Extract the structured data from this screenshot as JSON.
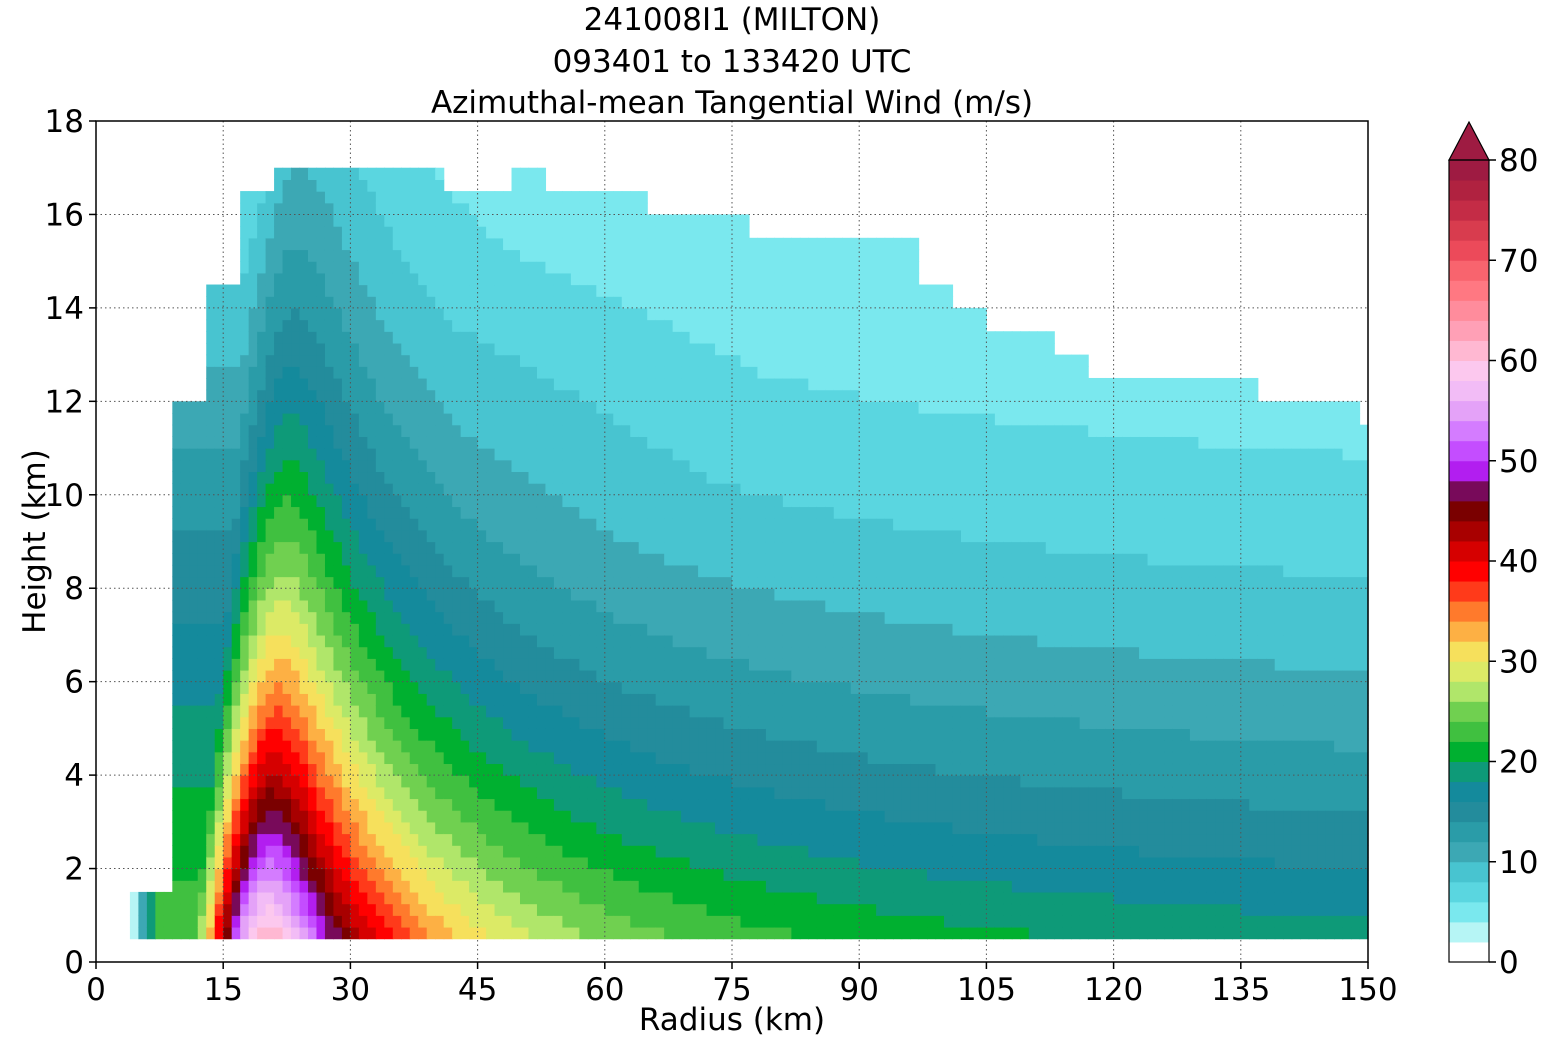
{
  "chart_data": {
    "type": "heatmap",
    "subtype": "filled-contour",
    "title": [
      "241008I1 (MILTON)",
      "093401 to 133420 UTC",
      "Azimuthal-mean Tangential Wind (m/s)"
    ],
    "xlabel": "Radius (km)",
    "ylabel": "Height (km)",
    "xlim": [
      0,
      150
    ],
    "ylim": [
      0,
      18
    ],
    "xticks": [
      0,
      15,
      30,
      45,
      60,
      75,
      90,
      105,
      120,
      135,
      150
    ],
    "yticks": [
      0,
      2,
      4,
      6,
      8,
      10,
      12,
      14,
      16,
      18
    ],
    "grid": true,
    "colorbar": {
      "min": 0,
      "max": 80,
      "step": 2,
      "extend": "max",
      "ticks": [
        0,
        10,
        20,
        30,
        40,
        50,
        60,
        70,
        80
      ],
      "extend_color": "#9e1b42",
      "colors": [
        "#ffffff",
        "#b6f5f5",
        "#7ae8ee",
        "#5ad6e0",
        "#48c4d0",
        "#3ca8b4",
        "#2a9ca8",
        "#238c9c",
        "#148a9c",
        "#0e9a78",
        "#00b030",
        "#40c040",
        "#70d050",
        "#b0e66a",
        "#dcea66",
        "#f6e05c",
        "#fdb044",
        "#ff7a2c",
        "#ff3a1a",
        "#ff0000",
        "#d60000",
        "#a80000",
        "#7a0000",
        "#780a5a",
        "#b21ef0",
        "#c44dff",
        "#d47cff",
        "#e4a2f8",
        "#f2bcf6",
        "#fcc8ee",
        "#ffb8d2",
        "#ffa0b6",
        "#ff8c9c",
        "#ff7882",
        "#f8646e",
        "#ec4a5a",
        "#d83c4e",
        "#c42c46",
        "#b02240",
        "#9e1b42"
      ]
    },
    "fields": {
      "x_nodes_km": [
        4,
        8,
        12,
        16,
        20,
        24,
        28,
        32,
        36,
        40,
        44,
        48,
        52,
        56,
        60,
        64,
        68,
        72,
        76,
        80,
        84,
        88,
        92,
        96,
        100,
        104,
        108,
        112,
        116,
        120,
        124,
        128,
        132,
        136,
        140,
        144,
        148,
        150
      ],
      "top_km": [
        1.5,
        12,
        14.5,
        16.5,
        17,
        17,
        17,
        17,
        17,
        16.5,
        16.5,
        17,
        16.5,
        16.5,
        16.5,
        16,
        16,
        16,
        15.5,
        15.5,
        15.5,
        15.5,
        15.5,
        14.5,
        14,
        13.5,
        13.5,
        13,
        12.5,
        12.5,
        12.5,
        12.5,
        12.5,
        12,
        12,
        12,
        11.5,
        11.5
      ],
      "bottom_km": 0.5,
      "vortex_core": {
        "center_radius_km": 20,
        "max_wind_ms": 66,
        "center_height_km": 0.8
      }
    }
  }
}
